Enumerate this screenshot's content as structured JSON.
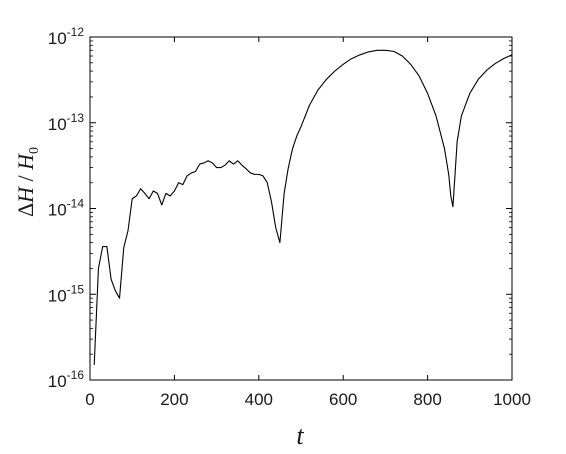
{
  "chart_data": {
    "type": "line",
    "title": "",
    "xlabel": "t",
    "ylabel": "ΔH / H0",
    "ylabel_parts": {
      "delta": "Δ",
      "h": "H",
      "slash": " / ",
      "h0": "H",
      "sub": "0"
    },
    "xlim": [
      0,
      1000
    ],
    "ylim": [
      1e-16,
      1e-12
    ],
    "yscale": "log",
    "grid": false,
    "legend": "none",
    "x_ticks": [
      0,
      200,
      400,
      600,
      800,
      1000
    ],
    "x_tick_labels": [
      "0",
      "200",
      "400",
      "600",
      "800",
      "1000"
    ],
    "y_ticks": [
      1e-16,
      1e-15,
      1e-14,
      1e-13,
      1e-12
    ],
    "y_tick_labels": [
      {
        "base": "10",
        "exp": "-16"
      },
      {
        "base": "10",
        "exp": "-15"
      },
      {
        "base": "10",
        "exp": "-14"
      },
      {
        "base": "10",
        "exp": "-13"
      },
      {
        "base": "10",
        "exp": "-12"
      }
    ],
    "line_color": "#000000",
    "series": [
      {
        "x": [
          10,
          20,
          30,
          40,
          50,
          60,
          70,
          80,
          90,
          100,
          110,
          120,
          130,
          140,
          150,
          160,
          170,
          180,
          190,
          200,
          210,
          220,
          230,
          240,
          250,
          260,
          270,
          280,
          290,
          300,
          310,
          320,
          330,
          340,
          350,
          360,
          370,
          380,
          390,
          400,
          410,
          420,
          430,
          440,
          450,
          460,
          470,
          480,
          490,
          500,
          520,
          540,
          560,
          580,
          600,
          620,
          640,
          660,
          680,
          700,
          720,
          740,
          760,
          780,
          800,
          820,
          840,
          850,
          855,
          860,
          865,
          870,
          880,
          900,
          920,
          940,
          960,
          980,
          1000
        ],
        "y": [
          1.5e-16,
          2e-15,
          3.6e-15,
          3.6e-15,
          1.5e-15,
          1.1e-15,
          9e-16,
          3.5e-15,
          5.5e-15,
          1.3e-14,
          1.4e-14,
          1.7e-14,
          1.5e-14,
          1.3e-14,
          1.6e-14,
          1.5e-14,
          1.1e-14,
          1.5e-14,
          1.4e-14,
          1.6e-14,
          2e-14,
          1.9e-14,
          2.4e-14,
          2.6e-14,
          2.7e-14,
          3.3e-14,
          3.4e-14,
          3.6e-14,
          3.4e-14,
          3e-14,
          3e-14,
          3.2e-14,
          3.6e-14,
          3.3e-14,
          3.6e-14,
          3.2e-14,
          2.9e-14,
          2.6e-14,
          2.5e-14,
          2.5e-14,
          2.4e-14,
          2e-14,
          1.2e-14,
          6e-15,
          4e-15,
          1.5e-14,
          3e-14,
          5e-14,
          7e-14,
          9e-14,
          1.6e-13,
          2.4e-13,
          3.2e-13,
          4e-13,
          4.8e-13,
          5.6e-13,
          6.2e-13,
          6.7e-13,
          7e-13,
          7e-13,
          6.8e-13,
          6e-13,
          4.8e-13,
          3.5e-13,
          2.2e-13,
          1.2e-13,
          5e-14,
          2.5e-14,
          1.4e-14,
          1.05e-14,
          2.5e-14,
          6e-14,
          1.2e-13,
          2.2e-13,
          3.2e-13,
          4.1e-13,
          4.9e-13,
          5.6e-13,
          6.2e-13
        ]
      }
    ]
  }
}
